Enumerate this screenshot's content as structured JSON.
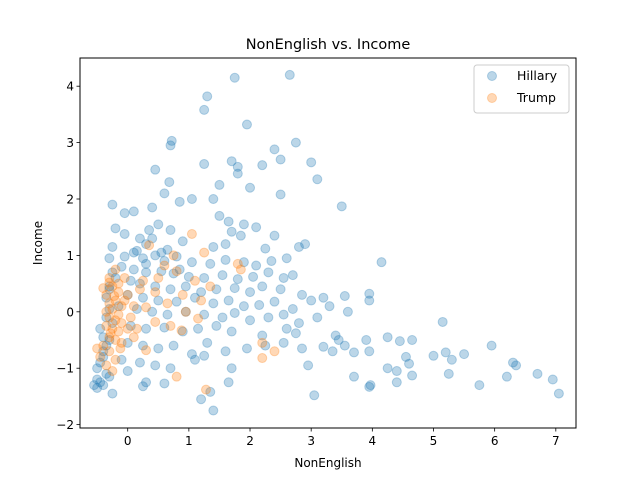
{
  "chart_data": {
    "type": "scatter",
    "title": "NonEnglish vs. Income",
    "xlabel": "NonEnglish",
    "ylabel": "Income",
    "xlim": [
      -0.78,
      7.33
    ],
    "ylim": [
      -2.06,
      4.5
    ],
    "xticks": [
      0,
      1,
      2,
      3,
      4,
      5,
      6,
      7
    ],
    "yticks": [
      -2,
      -1,
      0,
      1,
      2,
      3,
      4
    ],
    "grid": false,
    "legend_position": "top-right",
    "series": [
      {
        "name": "Hillary",
        "color": "#1f77b4",
        "points": [
          [
            2.65,
            4.2
          ],
          [
            1.75,
            4.15
          ],
          [
            1.3,
            3.82
          ],
          [
            1.25,
            3.58
          ],
          [
            1.95,
            3.32
          ],
          [
            0.72,
            3.03
          ],
          [
            0.7,
            2.95
          ],
          [
            2.4,
            2.88
          ],
          [
            2.75,
            3.0
          ],
          [
            1.7,
            2.67
          ],
          [
            1.25,
            2.62
          ],
          [
            1.8,
            2.57
          ],
          [
            2.2,
            2.6
          ],
          [
            2.5,
            2.7
          ],
          [
            3.0,
            2.65
          ],
          [
            1.8,
            2.45
          ],
          [
            0.45,
            2.52
          ],
          [
            3.1,
            2.35
          ],
          [
            0.68,
            2.3
          ],
          [
            1.5,
            2.25
          ],
          [
            0.6,
            2.1
          ],
          [
            2.0,
            2.2
          ],
          [
            2.5,
            2.08
          ],
          [
            3.5,
            1.87
          ],
          [
            -0.25,
            1.9
          ],
          [
            1.05,
            2.0
          ],
          [
            1.4,
            2.0
          ],
          [
            0.85,
            1.95
          ],
          [
            -0.05,
            1.75
          ],
          [
            0.1,
            1.78
          ],
          [
            0.4,
            1.85
          ],
          [
            1.5,
            1.7
          ],
          [
            1.65,
            1.6
          ],
          [
            1.9,
            1.55
          ],
          [
            2.1,
            1.5
          ],
          [
            0.5,
            1.55
          ],
          [
            0.35,
            1.45
          ],
          [
            -0.05,
            1.38
          ],
          [
            0.2,
            1.3
          ],
          [
            0.7,
            1.45
          ],
          [
            1.7,
            1.42
          ],
          [
            1.85,
            1.35
          ],
          [
            2.4,
            1.35
          ],
          [
            0.15,
            1.08
          ],
          [
            0.3,
            1.2
          ],
          [
            0.65,
            1.1
          ],
          [
            0.9,
            1.25
          ],
          [
            1.4,
            1.15
          ],
          [
            1.6,
            1.2
          ],
          [
            2.25,
            1.12
          ],
          [
            2.9,
            1.2
          ],
          [
            2.8,
            1.15
          ],
          [
            -0.05,
            0.98
          ],
          [
            0.25,
            0.95
          ],
          [
            0.45,
            1.0
          ],
          [
            0.6,
            0.9
          ],
          [
            0.8,
            0.98
          ],
          [
            1.05,
            0.88
          ],
          [
            1.35,
            0.85
          ],
          [
            1.6,
            0.92
          ],
          [
            1.9,
            0.88
          ],
          [
            2.1,
            0.82
          ],
          [
            2.35,
            0.9
          ],
          [
            2.6,
            0.95
          ],
          [
            4.15,
            0.88
          ],
          [
            -0.1,
            0.8
          ],
          [
            0.1,
            0.75
          ],
          [
            0.3,
            0.7
          ],
          [
            0.55,
            0.72
          ],
          [
            0.75,
            0.68
          ],
          [
            1.0,
            0.62
          ],
          [
            1.25,
            0.6
          ],
          [
            1.55,
            0.65
          ],
          [
            1.8,
            0.58
          ],
          [
            2.05,
            0.62
          ],
          [
            2.3,
            0.7
          ],
          [
            2.55,
            0.6
          ],
          [
            2.7,
            0.65
          ],
          [
            -0.2,
            0.6
          ],
          [
            0.05,
            0.55
          ],
          [
            0.2,
            0.5
          ],
          [
            0.45,
            0.45
          ],
          [
            0.7,
            0.4
          ],
          [
            0.95,
            0.45
          ],
          [
            1.2,
            0.35
          ],
          [
            1.45,
            0.4
          ],
          [
            1.75,
            0.42
          ],
          [
            2.0,
            0.35
          ],
          [
            2.2,
            0.45
          ],
          [
            2.5,
            0.4
          ],
          [
            2.85,
            0.3
          ],
          [
            3.2,
            0.25
          ],
          [
            3.55,
            0.28
          ],
          [
            3.95,
            0.32
          ],
          [
            -0.3,
            0.4
          ],
          [
            0.0,
            0.3
          ],
          [
            0.25,
            0.25
          ],
          [
            0.5,
            0.2
          ],
          [
            0.8,
            0.18
          ],
          [
            1.1,
            0.25
          ],
          [
            1.4,
            0.15
          ],
          [
            1.65,
            0.2
          ],
          [
            1.9,
            0.1
          ],
          [
            2.15,
            0.12
          ],
          [
            2.4,
            0.18
          ],
          [
            2.7,
            0.05
          ],
          [
            3.0,
            0.2
          ],
          [
            3.3,
            0.1
          ],
          [
            3.6,
            0.0
          ],
          [
            3.95,
            0.2
          ],
          [
            -0.15,
            0.1
          ],
          [
            0.15,
            0.05
          ],
          [
            0.4,
            0.0
          ],
          [
            0.65,
            -0.05
          ],
          [
            0.95,
            0.0
          ],
          [
            1.25,
            -0.05
          ],
          [
            1.55,
            -0.1
          ],
          [
            1.75,
            -0.02
          ],
          [
            2.0,
            -0.15
          ],
          [
            2.3,
            -0.1
          ],
          [
            2.55,
            -0.05
          ],
          [
            2.8,
            -0.2
          ],
          [
            3.1,
            -0.1
          ],
          [
            -0.25,
            -0.2
          ],
          [
            0.05,
            -0.25
          ],
          [
            0.3,
            -0.3
          ],
          [
            0.6,
            -0.28
          ],
          [
            0.9,
            -0.35
          ],
          [
            1.15,
            -0.3
          ],
          [
            1.45,
            -0.25
          ],
          [
            1.7,
            -0.35
          ],
          [
            2.2,
            -0.42
          ],
          [
            2.6,
            -0.3
          ],
          [
            2.75,
            -0.38
          ],
          [
            3.4,
            -0.42
          ],
          [
            3.45,
            -0.5
          ],
          [
            3.55,
            -0.6
          ],
          [
            3.9,
            -0.5
          ],
          [
            4.25,
            -0.45
          ],
          [
            4.45,
            -0.52
          ],
          [
            4.65,
            -0.5
          ],
          [
            5.15,
            -0.18
          ],
          [
            -0.3,
            -0.5
          ],
          [
            0.0,
            -0.55
          ],
          [
            0.25,
            -0.6
          ],
          [
            0.5,
            -0.65
          ],
          [
            0.75,
            -0.6
          ],
          [
            1.05,
            -0.75
          ],
          [
            1.3,
            -0.55
          ],
          [
            1.6,
            -0.7
          ],
          [
            1.95,
            -0.65
          ],
          [
            2.25,
            -0.6
          ],
          [
            2.55,
            -0.55
          ],
          [
            2.85,
            -0.65
          ],
          [
            3.2,
            -0.62
          ],
          [
            3.35,
            -0.7
          ],
          [
            3.7,
            -0.72
          ],
          [
            3.95,
            -0.7
          ],
          [
            4.55,
            -0.8
          ],
          [
            5.0,
            -0.78
          ],
          [
            5.2,
            -0.72
          ],
          [
            5.3,
            -0.85
          ],
          [
            5.5,
            -0.75
          ],
          [
            5.95,
            -0.6
          ],
          [
            -0.4,
            -0.8
          ],
          [
            -0.1,
            -0.85
          ],
          [
            0.2,
            -0.9
          ],
          [
            0.45,
            -0.95
          ],
          [
            0.7,
            -1.0
          ],
          [
            1.1,
            -0.85
          ],
          [
            1.25,
            -0.78
          ],
          [
            1.7,
            -1.0
          ],
          [
            2.95,
            -0.95
          ],
          [
            4.25,
            -1.0
          ],
          [
            4.4,
            -1.05
          ],
          [
            4.6,
            -0.92
          ],
          [
            5.25,
            -1.1
          ],
          [
            6.3,
            -0.9
          ],
          [
            6.35,
            -0.95
          ],
          [
            6.7,
            -1.1
          ],
          [
            6.95,
            -1.2
          ],
          [
            -0.5,
            -1.2
          ],
          [
            -0.3,
            -1.15
          ],
          [
            0.0,
            -1.05
          ],
          [
            0.3,
            -1.25
          ],
          [
            0.6,
            -1.27
          ],
          [
            0.25,
            -1.32
          ],
          [
            1.65,
            -1.25
          ],
          [
            3.95,
            -1.33
          ],
          [
            3.97,
            -1.3
          ],
          [
            3.7,
            -1.15
          ],
          [
            4.4,
            -1.25
          ],
          [
            4.65,
            -1.13
          ],
          [
            6.2,
            -1.15
          ],
          [
            5.75,
            -1.3
          ],
          [
            7.05,
            -1.45
          ],
          [
            3.05,
            -1.48
          ],
          [
            -0.25,
            -1.45
          ],
          [
            1.35,
            -1.42
          ],
          [
            1.2,
            -1.55
          ],
          [
            1.4,
            -1.75
          ],
          [
            -0.5,
            -1.35
          ],
          [
            -0.4,
            -1.3
          ],
          [
            -0.45,
            -1.25
          ],
          [
            -0.55,
            -1.3
          ],
          [
            -0.35,
            -1.1
          ],
          [
            -0.5,
            -1.0
          ],
          [
            -0.45,
            -0.9
          ],
          [
            -0.4,
            -0.7
          ],
          [
            -0.35,
            -0.6
          ],
          [
            -0.4,
            -0.45
          ],
          [
            -0.45,
            -0.3
          ],
          [
            -0.35,
            -0.1
          ],
          [
            -0.3,
            0.05
          ],
          [
            -0.35,
            0.25
          ],
          [
            -0.3,
            0.45
          ],
          [
            -0.25,
            0.7
          ],
          [
            -0.3,
            0.95
          ],
          [
            -0.25,
            1.15
          ],
          [
            -0.2,
            1.48
          ],
          [
            0.4,
            1.3
          ],
          [
            0.55,
            1.05
          ],
          [
            0.3,
            0.85
          ],
          [
            0.1,
            1.05
          ],
          [
            0.85,
            0.75
          ]
        ]
      },
      {
        "name": "Trump",
        "color": "#ff7f0e",
        "points": [
          [
            1.05,
            1.38
          ],
          [
            0.35,
            1.18
          ],
          [
            1.25,
            1.05
          ],
          [
            0.75,
            1.0
          ],
          [
            1.8,
            0.85
          ],
          [
            0.6,
            0.82
          ],
          [
            0.8,
            0.72
          ],
          [
            1.1,
            0.55
          ],
          [
            0.25,
            0.55
          ],
          [
            1.35,
            0.45
          ],
          [
            0.45,
            0.35
          ],
          [
            0.9,
            0.3
          ],
          [
            1.2,
            0.2
          ],
          [
            0.65,
            0.15
          ],
          [
            0.3,
            0.08
          ],
          [
            0.95,
            0.0
          ],
          [
            1.15,
            -0.12
          ],
          [
            0.45,
            -0.18
          ],
          [
            0.7,
            -0.25
          ],
          [
            0.88,
            -0.33
          ],
          [
            2.2,
            -0.55
          ],
          [
            2.2,
            -0.82
          ],
          [
            2.4,
            -0.7
          ],
          [
            0.3,
            -0.68
          ],
          [
            0.8,
            -1.15
          ],
          [
            1.28,
            -1.38
          ],
          [
            1.85,
            0.75
          ],
          [
            0.5,
            0.6
          ],
          [
            -0.2,
            0.75
          ],
          [
            -0.05,
            0.6
          ],
          [
            -0.3,
            0.6
          ],
          [
            -0.25,
            0.45
          ],
          [
            -0.15,
            0.35
          ],
          [
            -0.35,
            0.3
          ],
          [
            -0.2,
            0.2
          ],
          [
            -0.3,
            0.15
          ],
          [
            -0.1,
            0.1
          ],
          [
            -0.25,
            0.05
          ],
          [
            -0.35,
            0.0
          ],
          [
            -0.15,
            -0.05
          ],
          [
            -0.3,
            -0.1
          ],
          [
            -0.2,
            -0.15
          ],
          [
            -0.1,
            -0.2
          ],
          [
            -0.35,
            -0.25
          ],
          [
            -0.25,
            -0.3
          ],
          [
            -0.15,
            -0.35
          ],
          [
            -0.3,
            -0.45
          ],
          [
            -0.2,
            -0.5
          ],
          [
            -0.1,
            -0.55
          ],
          [
            -0.4,
            -0.6
          ],
          [
            -0.3,
            -0.7
          ],
          [
            -0.5,
            -0.65
          ],
          [
            -0.45,
            -0.8
          ],
          [
            -0.2,
            -0.85
          ],
          [
            -0.35,
            -0.95
          ],
          [
            -0.25,
            -1.05
          ],
          [
            -0.4,
            0.42
          ],
          [
            -0.15,
            0.5
          ],
          [
            0.0,
            0.3
          ],
          [
            0.1,
            0.1
          ],
          [
            0.05,
            -0.1
          ],
          [
            0.15,
            -0.3
          ],
          [
            0.2,
            0.4
          ],
          [
            -0.05,
            0.2
          ],
          [
            0.1,
            -0.45
          ],
          [
            -0.3,
            0.52
          ],
          [
            -0.22,
            0.28
          ],
          [
            -0.28,
            -0.38
          ],
          [
            -0.12,
            -0.65
          ],
          [
            0.0,
            -0.3
          ]
        ]
      }
    ]
  }
}
